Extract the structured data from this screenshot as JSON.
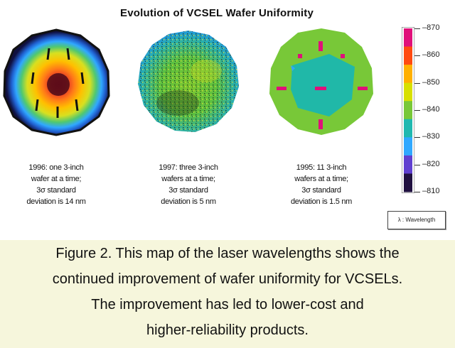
{
  "figure": {
    "title": "Evolution of VCSEL Wafer Uniformity",
    "wafers": [
      {
        "caption_lines": [
          "1996: one 3-inch",
          "wafer at a time;",
          "3σ standard",
          "deviation is 14 nm"
        ]
      },
      {
        "caption_lines": [
          "1997: three 3-inch",
          "wafers at a time;",
          "3σ standard",
          "deviation is 5 nm"
        ]
      },
      {
        "caption_lines": [
          "1995: 11 3-inch",
          "wafers at a time;",
          "3σ standard",
          "deviation is 1.5 nm"
        ]
      }
    ],
    "scale": {
      "ticks": [
        "870",
        "860",
        "850",
        "840",
        "830",
        "820",
        "810"
      ],
      "colors": [
        "#e0107a",
        "#ff4a10",
        "#ffb000",
        "#d8e000",
        "#78c838",
        "#20b8b0",
        "#30a8ff",
        "#6040d0",
        "#201040"
      ]
    },
    "legend": "λ : Wavelength"
  },
  "caption": {
    "lines": [
      "Figure 2. This map of the laser wavelengths shows the",
      "continued improvement of wafer uniformity for VCSELs.",
      "The improvement has led to lower-cost and",
      "higher-reliability products."
    ]
  }
}
